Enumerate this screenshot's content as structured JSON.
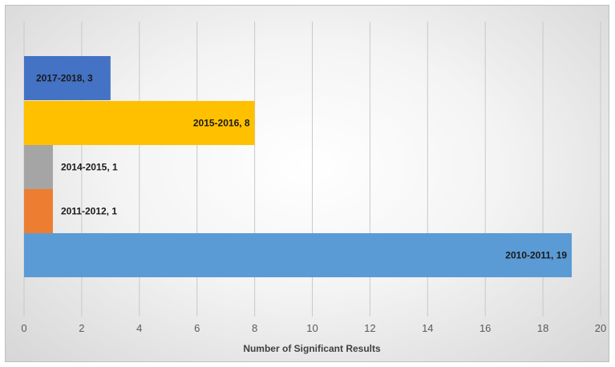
{
  "chart_data": {
    "type": "bar",
    "orientation": "horizontal",
    "categories": [
      "2010-2011",
      "2011-2012",
      "2014-2015",
      "2015-2016",
      "2017-2018"
    ],
    "values": [
      19,
      1,
      1,
      8,
      3
    ],
    "data_labels": [
      "2010-2011, 19",
      "2011-2012, 1",
      "2014-2015, 1",
      "2015-2016, 8",
      "2017-2018, 3"
    ],
    "colors": [
      "#5b9bd5",
      "#ed7d31",
      "#a5a5a5",
      "#ffc000",
      "#4472c4"
    ],
    "title": "",
    "xlabel": "Number of Significant Results",
    "ylabel": "",
    "xlim": [
      0,
      20
    ],
    "xticks": [
      "0",
      "2",
      "4",
      "6",
      "8",
      "10",
      "12",
      "14",
      "16",
      "18",
      "20"
    ],
    "grid": "vertical",
    "legend": "none"
  }
}
